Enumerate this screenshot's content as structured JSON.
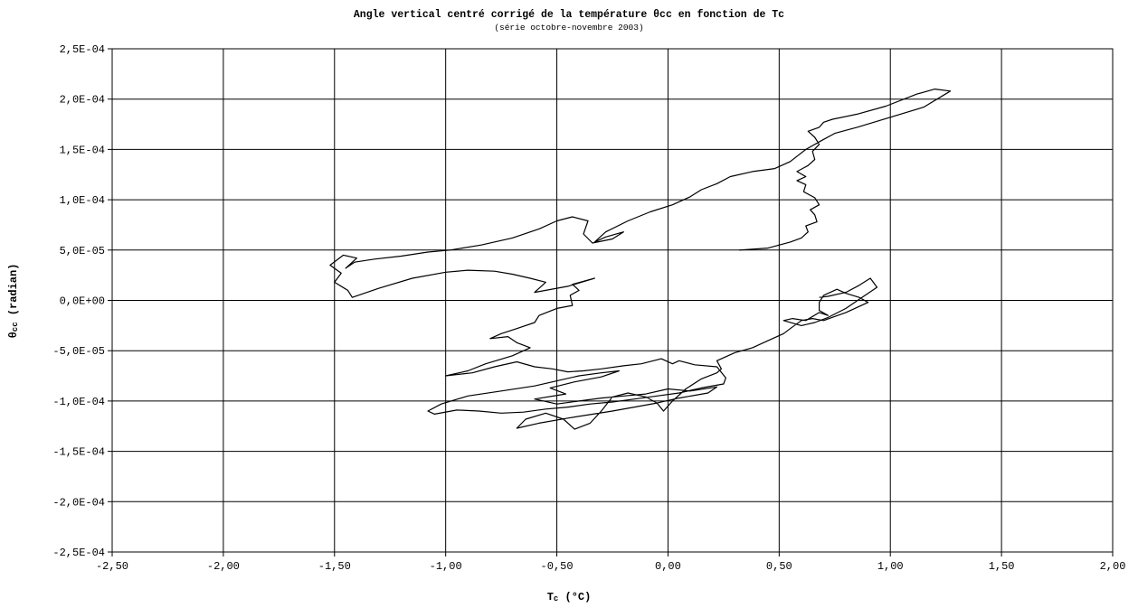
{
  "chart_data": {
    "type": "line",
    "title": "Angle vertical centré corrigé de la température θcc en fonction de Tc",
    "subtitle": "(série octobre-novembre 2003)",
    "xlabel": {
      "prefix": "T",
      "sub": "c",
      "suffix": " (°C)"
    },
    "ylabel": {
      "prefix": "θ",
      "sub": "cc",
      "suffix": " (radian)"
    },
    "xlim": [
      -2.5,
      2.0
    ],
    "ylim": [
      -0.00025,
      0.00025
    ],
    "xticks": [
      -2.5,
      -2.0,
      -1.5,
      -1.0,
      -0.5,
      0.0,
      0.5,
      1.0,
      1.5,
      2.0
    ],
    "xtick_labels": [
      "-2,50",
      "-2,00",
      "-1,50",
      "-1,00",
      "-0,50",
      "0,00",
      "0,50",
      "1,00",
      "1,50",
      "2,00"
    ],
    "yticks": [
      0.00025,
      0.0002,
      0.00015,
      0.0001,
      5e-05,
      0,
      -5e-05,
      -0.0001,
      -0.00015,
      -0.0002,
      -0.00025
    ],
    "ytick_labels": [
      "2,5E-04",
      "2,0E-04",
      "1,5E-04",
      "1,0E-04",
      "5,0E-05",
      "0,0E+00",
      "-5,0E-05",
      "-1,0E-04",
      "-1,5E-04",
      "-2,0E-04",
      "-2,5E-04"
    ],
    "grid": true,
    "line_color": "#000000",
    "series": [
      {
        "points": [
          [
            0.32,
            5e-05
          ],
          [
            0.45,
            5.2e-05
          ],
          [
            0.55,
            5.8e-05
          ],
          [
            0.6,
            6.2e-05
          ],
          [
            0.63,
            6.8e-05
          ],
          [
            0.62,
            7.4e-05
          ],
          [
            0.67,
            7.8e-05
          ],
          [
            0.66,
            8.5e-05
          ],
          [
            0.64,
            9e-05
          ],
          [
            0.68,
            9.5e-05
          ],
          [
            0.66,
            0.000102
          ],
          [
            0.61,
            0.000108
          ],
          [
            0.62,
            0.000115
          ],
          [
            0.58,
            0.000119
          ],
          [
            0.62,
            0.000123
          ],
          [
            0.58,
            0.000128
          ],
          [
            0.63,
            0.000134
          ],
          [
            0.66,
            0.00014
          ],
          [
            0.65,
            0.000148
          ],
          [
            0.68,
            0.000155
          ],
          [
            0.66,
            0.000162
          ],
          [
            0.63,
            0.000168
          ],
          [
            0.68,
            0.000172
          ],
          [
            0.7,
            0.000177
          ],
          [
            0.74,
            0.00018
          ],
          [
            0.85,
            0.000185
          ],
          [
            0.98,
            0.000193
          ],
          [
            1.12,
            0.000205
          ],
          [
            1.2,
            0.00021
          ],
          [
            1.27,
            0.000208
          ],
          [
            1.15,
            0.000192
          ],
          [
            1.0,
            0.000182
          ],
          [
            0.85,
            0.000172
          ],
          [
            0.75,
            0.000166
          ],
          [
            0.7,
            0.00016
          ],
          [
            0.62,
            0.00015
          ],
          [
            0.55,
            0.000138
          ],
          [
            0.48,
            0.000131
          ],
          [
            0.38,
            0.000128
          ],
          [
            0.28,
            0.000123
          ],
          [
            0.22,
            0.000116
          ],
          [
            0.15,
            0.00011
          ],
          [
            0.1,
            0.000103
          ],
          [
            0.02,
            9.5e-05
          ],
          [
            -0.08,
            8.8e-05
          ],
          [
            -0.18,
            7.9e-05
          ],
          [
            -0.28,
            6.8e-05
          ],
          [
            -0.33,
            5.8e-05
          ],
          [
            -0.28,
            6.3e-05
          ],
          [
            -0.2,
            6.8e-05
          ],
          [
            -0.25,
            6.1e-05
          ],
          [
            -0.34,
            5.7e-05
          ],
          [
            -0.38,
            6.6e-05
          ],
          [
            -0.36,
            7.9e-05
          ],
          [
            -0.43,
            8.3e-05
          ],
          [
            -0.5,
            7.9e-05
          ],
          [
            -0.58,
            7.1e-05
          ],
          [
            -0.7,
            6.2e-05
          ],
          [
            -0.84,
            5.5e-05
          ],
          [
            -0.98,
            5e-05
          ],
          [
            -1.08,
            4.8e-05
          ],
          [
            -1.2,
            4.4e-05
          ],
          [
            -1.32,
            4.1e-05
          ],
          [
            -1.41,
            3.8e-05
          ],
          [
            -1.45,
            3.2e-05
          ],
          [
            -1.4,
            4.2e-05
          ],
          [
            -1.46,
            4.5e-05
          ],
          [
            -1.52,
            3.5e-05
          ],
          [
            -1.47,
            2.7e-05
          ],
          [
            -1.5,
            1.8e-05
          ],
          [
            -1.44,
            1e-05
          ],
          [
            -1.42,
            3e-06
          ],
          [
            -1.3,
            1.2e-05
          ],
          [
            -1.15,
            2.2e-05
          ],
          [
            -1.0,
            2.8e-05
          ],
          [
            -0.9,
            3e-05
          ],
          [
            -0.78,
            2.9e-05
          ],
          [
            -0.7,
            2.6e-05
          ],
          [
            -0.62,
            2.2e-05
          ],
          [
            -0.55,
            1.8e-05
          ],
          [
            -0.6,
            8e-06
          ],
          [
            -0.45,
            1.4e-05
          ],
          [
            -0.33,
            2.2e-05
          ],
          [
            -0.43,
            1.6e-05
          ],
          [
            -0.4,
            1e-05
          ],
          [
            -0.44,
            5e-06
          ],
          [
            -0.43,
            -5e-06
          ],
          [
            -0.5,
            -8e-06
          ],
          [
            -0.58,
            -1.5e-05
          ],
          [
            -0.6,
            -2.2e-05
          ],
          [
            -0.68,
            -2.8e-05
          ],
          [
            -0.75,
            -3.3e-05
          ],
          [
            -0.8,
            -3.8e-05
          ],
          [
            -0.72,
            -3.6e-05
          ],
          [
            -0.68,
            -4.2e-05
          ],
          [
            -0.62,
            -4.7e-05
          ],
          [
            -0.7,
            -5.5e-05
          ],
          [
            -0.82,
            -6.3e-05
          ],
          [
            -0.9,
            -7e-05
          ],
          [
            -1.0,
            -7.5e-05
          ],
          [
            -0.88,
            -7.2e-05
          ],
          [
            -0.78,
            -6.6e-05
          ],
          [
            -0.68,
            -6.1e-05
          ],
          [
            -0.6,
            -6.6e-05
          ],
          [
            -0.52,
            -6.8e-05
          ],
          [
            -0.45,
            -7.1e-05
          ],
          [
            -0.38,
            -7e-05
          ],
          [
            -0.3,
            -6.8e-05
          ],
          [
            -0.2,
            -6.5e-05
          ],
          [
            -0.12,
            -6.3e-05
          ],
          [
            -0.03,
            -5.8e-05
          ],
          [
            0.02,
            -6.3e-05
          ],
          [
            0.05,
            -6e-05
          ],
          [
            0.12,
            -6.4e-05
          ],
          [
            0.22,
            -6.6e-05
          ],
          [
            0.26,
            -7.7e-05
          ],
          [
            0.25,
            -8.3e-05
          ],
          [
            0.15,
            -8.7e-05
          ],
          [
            0.05,
            -9.2e-05
          ],
          [
            -0.05,
            -9.5e-05
          ],
          [
            -0.15,
            -9.8e-05
          ],
          [
            -0.25,
            -0.000101
          ],
          [
            -0.35,
            -0.000103
          ],
          [
            -0.45,
            -0.000106
          ],
          [
            -0.55,
            -0.000108
          ],
          [
            -0.65,
            -0.000111
          ],
          [
            -0.75,
            -0.000112
          ],
          [
            -0.85,
            -0.00011
          ],
          [
            -0.95,
            -0.000109
          ],
          [
            -1.05,
            -0.000113
          ],
          [
            -1.08,
            -0.00011
          ],
          [
            -1.02,
            -0.000103
          ],
          [
            -0.9,
            -9.5e-05
          ],
          [
            -0.75,
            -9e-05
          ],
          [
            -0.6,
            -8.5e-05
          ],
          [
            -0.5,
            -8e-05
          ],
          [
            -0.4,
            -7.5e-05
          ],
          [
            -0.3,
            -7.2e-05
          ],
          [
            -0.22,
            -7e-05
          ],
          [
            -0.3,
            -7.6e-05
          ],
          [
            -0.42,
            -8.1e-05
          ],
          [
            -0.53,
            -8.7e-05
          ],
          [
            -0.46,
            -9.3e-05
          ],
          [
            -0.6,
            -9.8e-05
          ],
          [
            -0.5,
            -0.000103
          ],
          [
            -0.4,
            -0.0001
          ],
          [
            -0.3,
            -9.7e-05
          ],
          [
            -0.2,
            -9.5e-05
          ],
          [
            -0.1,
            -9.3e-05
          ],
          [
            0.0,
            -8.8e-05
          ],
          [
            0.1,
            -9e-05
          ],
          [
            0.22,
            -8.6e-05
          ],
          [
            0.18,
            -9.2e-05
          ],
          [
            0.05,
            -9.7e-05
          ],
          [
            -0.05,
            -0.000102
          ],
          [
            -0.25,
            -0.00011
          ],
          [
            -0.45,
            -0.000117
          ],
          [
            -0.58,
            -0.000122
          ],
          [
            -0.68,
            -0.000127
          ],
          [
            -0.64,
            -0.000118
          ],
          [
            -0.55,
            -0.000112
          ],
          [
            -0.47,
            -0.000118
          ],
          [
            -0.42,
            -0.000128
          ],
          [
            -0.35,
            -0.000122
          ],
          [
            -0.3,
            -0.00011
          ],
          [
            -0.25,
            -9.6e-05
          ],
          [
            -0.18,
            -9.2e-05
          ],
          [
            -0.1,
            -9.6e-05
          ],
          [
            -0.05,
            -0.000102
          ],
          [
            -0.02,
            -0.00011
          ],
          [
            0.02,
            -0.0001
          ],
          [
            0.08,
            -8.8e-05
          ],
          [
            0.15,
            -7.8e-05
          ],
          [
            0.22,
            -7.2e-05
          ],
          [
            0.24,
            -6.8e-05
          ],
          [
            0.22,
            -6e-05
          ],
          [
            0.3,
            -5.2e-05
          ],
          [
            0.38,
            -4.7e-05
          ],
          [
            0.45,
            -4e-05
          ],
          [
            0.52,
            -3.3e-05
          ],
          [
            0.55,
            -2.8e-05
          ],
          [
            0.6,
            -2e-05
          ],
          [
            0.65,
            -1.8e-05
          ],
          [
            0.7,
            -2e-05
          ],
          [
            0.75,
            -1.6e-05
          ],
          [
            0.8,
            -1.2e-05
          ],
          [
            0.85,
            -7e-06
          ],
          [
            0.9,
            -2e-06
          ],
          [
            0.86,
            3e-06
          ],
          [
            0.8,
            7e-06
          ],
          [
            0.76,
            1.1e-05
          ],
          [
            0.7,
            5e-06
          ],
          [
            0.68,
            -2e-06
          ],
          [
            0.68,
            -1e-05
          ],
          [
            0.72,
            -1.5e-05
          ],
          [
            0.68,
            -1.2e-05
          ],
          [
            0.62,
            -2e-05
          ],
          [
            0.56,
            -1.8e-05
          ],
          [
            0.52,
            -2e-05
          ],
          [
            0.6,
            -2.5e-05
          ],
          [
            0.66,
            -2.2e-05
          ],
          [
            0.72,
            -1.7e-05
          ],
          [
            0.8,
            -8e-06
          ],
          [
            0.88,
            4e-06
          ],
          [
            0.94,
            1.3e-05
          ],
          [
            0.91,
            2.2e-05
          ],
          [
            0.86,
            1.5e-05
          ],
          [
            0.8,
            8e-06
          ],
          [
            0.72,
            4e-06
          ],
          [
            0.68,
            3e-06
          ]
        ]
      }
    ]
  }
}
